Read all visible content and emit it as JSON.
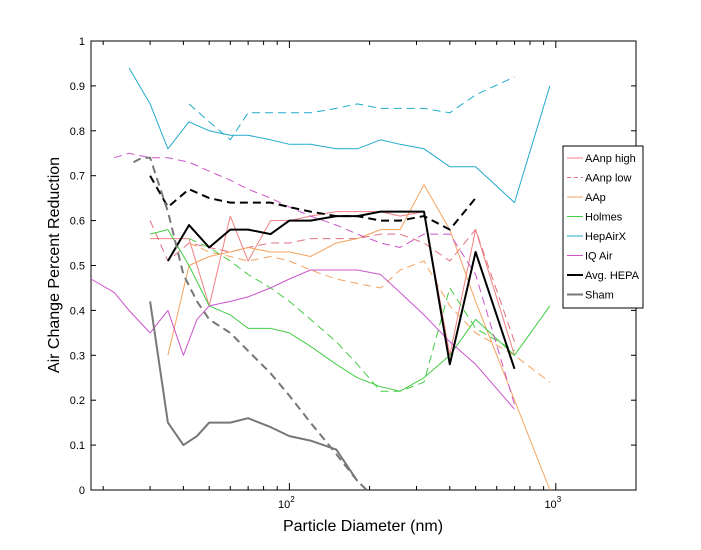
{
  "chart_data": {
    "type": "line",
    "xlabel": "Particle Diameter (nm)",
    "ylabel": "Air Change Percent Reduction",
    "x_scale": "log",
    "xlim": [
      18,
      2000
    ],
    "ylim": [
      0,
      1
    ],
    "x_ticks": [
      {
        "value": 100,
        "base": "10",
        "exp": "2"
      },
      {
        "value": 1000,
        "base": "10",
        "exp": "3"
      }
    ],
    "y_ticks": [
      "0",
      "0.1",
      "0.2",
      "0.3",
      "0.4",
      "0.5",
      "0.6",
      "0.7",
      "0.8",
      "0.9",
      "1"
    ],
    "grid": false,
    "legend_position": "right",
    "legend": [
      {
        "label": "AAnp high",
        "color": "#f08080",
        "dash": "solid",
        "width": 1
      },
      {
        "label": "AAnp low",
        "color": "#e07080",
        "dash": "dashed",
        "width": 1
      },
      {
        "label": "AAp",
        "color": "#f4a460",
        "dash": "solid",
        "width": 1
      },
      {
        "label": "Holmes",
        "color": "#44cc44",
        "dash": "solid",
        "width": 1
      },
      {
        "label": "HepAirX",
        "color": "#22aacc",
        "dash": "solid",
        "width": 1
      },
      {
        "label": "IQ Air",
        "color": "#cc55cc",
        "dash": "solid",
        "width": 1
      },
      {
        "label": "Avg. HEPA",
        "color": "#000000",
        "dash": "solid",
        "width": 2
      },
      {
        "label": "Sham",
        "color": "#777777",
        "dash": "solid",
        "width": 2
      }
    ],
    "series": [
      {
        "color": "#f08080",
        "dash": "solid",
        "width": 1,
        "x": [
          30,
          35,
          42,
          50,
          60,
          70,
          85,
          100,
          120,
          150,
          180,
          220,
          260,
          320,
          400,
          500,
          700
        ],
        "y": [
          0.56,
          0.56,
          0.56,
          0.41,
          0.61,
          0.51,
          0.6,
          0.6,
          0.61,
          0.62,
          0.62,
          0.62,
          0.61,
          0.62,
          0.3,
          0.58,
          0.3
        ]
      },
      {
        "color": "#e07080",
        "dash": "dashed",
        "width": 1,
        "x": [
          30,
          35,
          42,
          50,
          60,
          70,
          85,
          100,
          120,
          150,
          180,
          220,
          260,
          320,
          400,
          500,
          700
        ],
        "y": [
          0.6,
          0.51,
          0.55,
          0.54,
          0.53,
          0.54,
          0.55,
          0.55,
          0.56,
          0.56,
          0.56,
          0.57,
          0.57,
          0.55,
          0.51,
          0.58,
          0.33
        ]
      },
      {
        "color": "#f4a460",
        "dash": "solid",
        "width": 1,
        "x": [
          35,
          42,
          50,
          60,
          70,
          85,
          100,
          120,
          150,
          180,
          220,
          260,
          320,
          400,
          500,
          700,
          950
        ],
        "y": [
          0.3,
          0.5,
          0.52,
          0.53,
          0.54,
          0.53,
          0.53,
          0.52,
          0.55,
          0.56,
          0.58,
          0.58,
          0.68,
          0.58,
          0.42,
          0.2,
          0.0
        ]
      },
      {
        "color": "#f4a460",
        "dash": "dashed",
        "width": 1,
        "x": [
          42,
          50,
          60,
          70,
          85,
          100,
          120,
          150,
          180,
          220,
          260,
          320,
          400,
          500,
          700,
          950
        ],
        "y": [
          0.55,
          0.53,
          0.52,
          0.51,
          0.52,
          0.51,
          0.49,
          0.47,
          0.46,
          0.45,
          0.49,
          0.51,
          0.41,
          0.35,
          0.3,
          0.24
        ]
      },
      {
        "color": "#44cc44",
        "dash": "solid",
        "width": 1,
        "x": [
          30,
          35,
          42,
          50,
          60,
          70,
          85,
          100,
          120,
          150,
          180,
          220,
          260,
          320,
          400,
          500,
          700,
          950
        ],
        "y": [
          0.57,
          0.58,
          0.5,
          0.41,
          0.39,
          0.36,
          0.36,
          0.35,
          0.32,
          0.28,
          0.25,
          0.23,
          0.22,
          0.25,
          0.3,
          0.38,
          0.3,
          0.41
        ]
      },
      {
        "color": "#44cc44",
        "dash": "dashed",
        "width": 1,
        "x": [
          42,
          50,
          60,
          70,
          85,
          100,
          120,
          150,
          180,
          220,
          260,
          320,
          400,
          500,
          700
        ],
        "y": [
          0.56,
          0.54,
          0.51,
          0.48,
          0.45,
          0.42,
          0.38,
          0.33,
          0.28,
          0.22,
          0.22,
          0.24,
          0.45,
          0.36,
          0.31
        ]
      },
      {
        "color": "#22aacc",
        "dash": "solid",
        "width": 1,
        "x": [
          25,
          30,
          35,
          42,
          50,
          60,
          70,
          85,
          100,
          120,
          150,
          180,
          220,
          260,
          320,
          400,
          500,
          700,
          950
        ],
        "y": [
          0.94,
          0.86,
          0.76,
          0.82,
          0.8,
          0.79,
          0.79,
          0.78,
          0.77,
          0.77,
          0.76,
          0.76,
          0.78,
          0.77,
          0.76,
          0.72,
          0.72,
          0.64,
          0.9
        ]
      },
      {
        "color": "#22aacc",
        "dash": "dashed",
        "width": 1,
        "x": [
          42,
          50,
          60,
          70,
          85,
          100,
          120,
          150,
          180,
          220,
          260,
          320,
          400,
          500,
          700
        ],
        "y": [
          0.86,
          0.82,
          0.78,
          0.84,
          0.84,
          0.84,
          0.84,
          0.85,
          0.86,
          0.85,
          0.85,
          0.85,
          0.84,
          0.88,
          0.92
        ]
      },
      {
        "color": "#cc55cc",
        "dash": "solid",
        "width": 1,
        "x": [
          18,
          22,
          25,
          30,
          35,
          40,
          45,
          50,
          60,
          70,
          85,
          100,
          120,
          150,
          180,
          220,
          260,
          320,
          400,
          500,
          700
        ],
        "y": [
          0.47,
          0.44,
          0.4,
          0.35,
          0.4,
          0.3,
          0.38,
          0.41,
          0.42,
          0.43,
          0.45,
          0.47,
          0.49,
          0.49,
          0.49,
          0.48,
          0.44,
          0.39,
          0.33,
          0.28,
          0.18
        ]
      },
      {
        "color": "#cc55cc",
        "dash": "dashed",
        "width": 1,
        "x": [
          22,
          25,
          30,
          35,
          42,
          50,
          60,
          70,
          85,
          100,
          120,
          150,
          180,
          220,
          260,
          320,
          400,
          500,
          700
        ],
        "y": [
          0.74,
          0.75,
          0.74,
          0.74,
          0.73,
          0.71,
          0.69,
          0.67,
          0.65,
          0.63,
          0.61,
          0.59,
          0.57,
          0.55,
          0.54,
          0.57,
          0.57,
          0.48,
          0.19
        ]
      },
      {
        "color": "#000000",
        "dash": "solid",
        "width": 2,
        "x": [
          35,
          42,
          50,
          60,
          70,
          85,
          100,
          120,
          150,
          180,
          220,
          260,
          320,
          400,
          500,
          700
        ],
        "y": [
          0.51,
          0.59,
          0.54,
          0.58,
          0.58,
          0.57,
          0.6,
          0.6,
          0.61,
          0.61,
          0.62,
          0.62,
          0.62,
          0.28,
          0.53,
          0.27
        ]
      },
      {
        "color": "#000000",
        "dash": "dashed",
        "width": 2,
        "x": [
          30,
          35,
          42,
          50,
          60,
          70,
          85,
          100,
          120,
          150,
          180,
          220,
          260,
          320,
          400,
          500
        ],
        "y": [
          0.7,
          0.63,
          0.67,
          0.65,
          0.64,
          0.64,
          0.64,
          0.63,
          0.62,
          0.61,
          0.61,
          0.6,
          0.6,
          0.61,
          0.58,
          0.65
        ]
      },
      {
        "color": "#777777",
        "dash": "solid",
        "width": 2,
        "x": [
          30,
          35,
          40,
          45,
          50,
          60,
          70,
          85,
          100,
          120,
          150,
          180
        ],
        "y": [
          0.42,
          0.15,
          0.1,
          0.12,
          0.15,
          0.15,
          0.16,
          0.14,
          0.12,
          0.11,
          0.09,
          0.02
        ]
      },
      {
        "color": "#777777",
        "dash": "dashed",
        "width": 2,
        "x": [
          26,
          28,
          30,
          35,
          40,
          45,
          50,
          60,
          70,
          85,
          100,
          120,
          150,
          180,
          195
        ],
        "y": [
          0.73,
          0.74,
          0.74,
          0.62,
          0.48,
          0.42,
          0.38,
          0.35,
          0.31,
          0.26,
          0.21,
          0.15,
          0.08,
          0.02,
          0.0
        ]
      }
    ]
  }
}
